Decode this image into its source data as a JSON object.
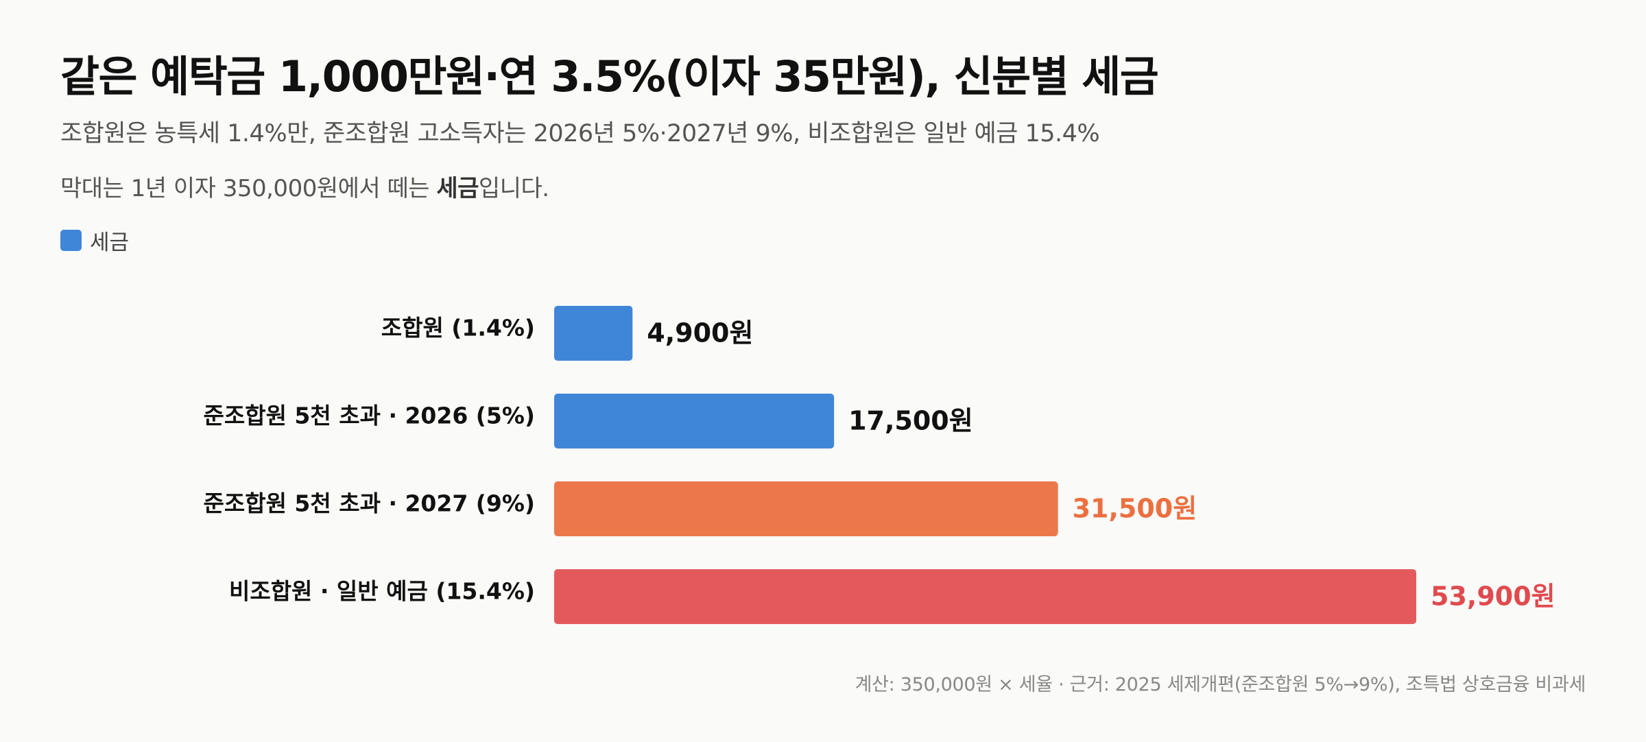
{
  "chart_data": {
    "type": "bar",
    "orientation": "horizontal",
    "title": "같은 예탁금 1,000만원·연 3.5%(이자 35만원), 신분별 세금",
    "subtitle": "조합원은 농특세 1.4%만, 준조합원 고소득자는 2026년 5%·2027년 9%, 비조합원은 일반 예금 15.4%",
    "note_prefix": "막대는 1년 이자 350,000원에서 떼는 ",
    "note_bold": "세금",
    "note_suffix": "입니다.",
    "legend": [
      {
        "label": "세금",
        "color": "#3f86d9"
      }
    ],
    "categories": [
      "조합원 (1.4%)",
      "준조합원 5천 초과 · 2026 (5%)",
      "준조합원 5천 초과 · 2027 (9%)",
      "비조합원 · 일반 예금 (15.4%)"
    ],
    "values": [
      4900,
      17500,
      31500,
      53900
    ],
    "value_labels": [
      "4,900원",
      "17,500원",
      "31,500원",
      "53,900원"
    ],
    "bar_colors": [
      "#3f86d9",
      "#3f86d9",
      "#ec774a",
      "#e45a5c"
    ],
    "value_label_colors": [
      "#111111",
      "#111111",
      "#ec6f3f",
      "#e04a4e"
    ],
    "xlim": [
      0,
      53900
    ],
    "grid": false,
    "footnote": "계산: 350,000원 × 세율 · 근거: 2025 세제개편(준조합원 5%→9%), 조특법 상호금융 비과세"
  }
}
